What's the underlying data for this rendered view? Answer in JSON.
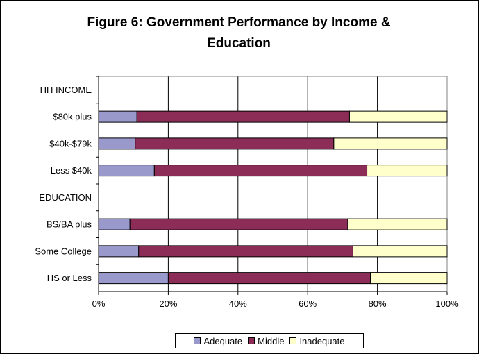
{
  "chart_data": {
    "type": "bar",
    "orientation": "horizontal",
    "stacked": "percent",
    "title": "Figure 6: Government Performance by Income & Education",
    "title_lines": [
      "Figure 6: Government Performance by Income &",
      "Education"
    ],
    "categories": [
      "HH INCOME",
      "$80k plus",
      "$40k-$79k",
      "Less $40k",
      "EDUCATION",
      "BS/BA plus",
      "Some College",
      "HS or Less"
    ],
    "series": [
      {
        "name": "Adequate",
        "color": "#9999cc",
        "values": [
          null,
          11,
          10.5,
          16,
          null,
          9,
          11.5,
          20
        ]
      },
      {
        "name": "Middle",
        "color": "#8b2d57",
        "values": [
          null,
          61,
          57,
          61,
          null,
          62.5,
          61.5,
          58
        ]
      },
      {
        "name": "Inadequate",
        "color": "#ffffcc",
        "values": [
          null,
          28,
          32.5,
          23,
          null,
          28.5,
          27,
          22
        ]
      }
    ],
    "xlim": [
      0,
      100
    ],
    "xticks": [
      "0%",
      "20%",
      "40%",
      "60%",
      "80%",
      "100%"
    ],
    "grid": true,
    "legend_position": "bottom"
  }
}
